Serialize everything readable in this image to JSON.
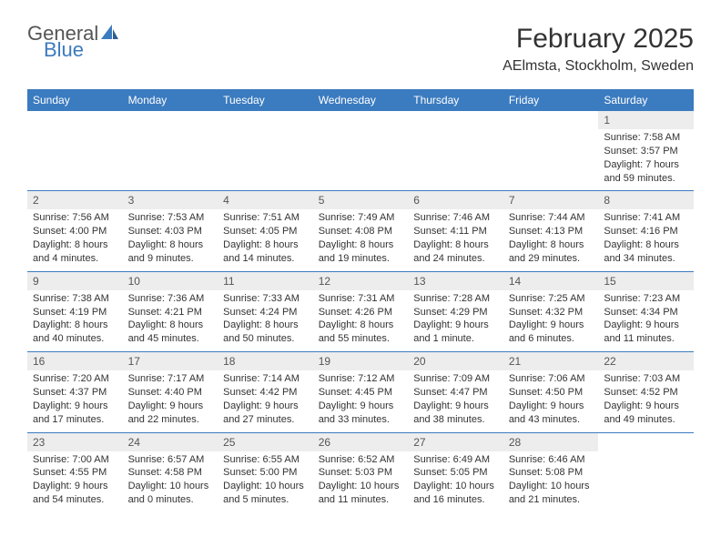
{
  "logo": {
    "word1": "General",
    "word2": "Blue",
    "text_color": "#555555",
    "accent_color": "#3b7bbf"
  },
  "title": "February 2025",
  "location": "AElmsta, Stockholm, Sweden",
  "colors": {
    "header_bg": "#3b7bbf",
    "header_text": "#ffffff",
    "daynum_bg": "#ededed",
    "row_border": "#3b7bbf",
    "body_text": "#333333"
  },
  "weekdays": [
    "Sunday",
    "Monday",
    "Tuesday",
    "Wednesday",
    "Thursday",
    "Friday",
    "Saturday"
  ],
  "weeks": [
    [
      null,
      null,
      null,
      null,
      null,
      null,
      {
        "n": "1",
        "sunrise": "Sunrise: 7:58 AM",
        "sunset": "Sunset: 3:57 PM",
        "dl1": "Daylight: 7 hours",
        "dl2": "and 59 minutes."
      }
    ],
    [
      {
        "n": "2",
        "sunrise": "Sunrise: 7:56 AM",
        "sunset": "Sunset: 4:00 PM",
        "dl1": "Daylight: 8 hours",
        "dl2": "and 4 minutes."
      },
      {
        "n": "3",
        "sunrise": "Sunrise: 7:53 AM",
        "sunset": "Sunset: 4:03 PM",
        "dl1": "Daylight: 8 hours",
        "dl2": "and 9 minutes."
      },
      {
        "n": "4",
        "sunrise": "Sunrise: 7:51 AM",
        "sunset": "Sunset: 4:05 PM",
        "dl1": "Daylight: 8 hours",
        "dl2": "and 14 minutes."
      },
      {
        "n": "5",
        "sunrise": "Sunrise: 7:49 AM",
        "sunset": "Sunset: 4:08 PM",
        "dl1": "Daylight: 8 hours",
        "dl2": "and 19 minutes."
      },
      {
        "n": "6",
        "sunrise": "Sunrise: 7:46 AM",
        "sunset": "Sunset: 4:11 PM",
        "dl1": "Daylight: 8 hours",
        "dl2": "and 24 minutes."
      },
      {
        "n": "7",
        "sunrise": "Sunrise: 7:44 AM",
        "sunset": "Sunset: 4:13 PM",
        "dl1": "Daylight: 8 hours",
        "dl2": "and 29 minutes."
      },
      {
        "n": "8",
        "sunrise": "Sunrise: 7:41 AM",
        "sunset": "Sunset: 4:16 PM",
        "dl1": "Daylight: 8 hours",
        "dl2": "and 34 minutes."
      }
    ],
    [
      {
        "n": "9",
        "sunrise": "Sunrise: 7:38 AM",
        "sunset": "Sunset: 4:19 PM",
        "dl1": "Daylight: 8 hours",
        "dl2": "and 40 minutes."
      },
      {
        "n": "10",
        "sunrise": "Sunrise: 7:36 AM",
        "sunset": "Sunset: 4:21 PM",
        "dl1": "Daylight: 8 hours",
        "dl2": "and 45 minutes."
      },
      {
        "n": "11",
        "sunrise": "Sunrise: 7:33 AM",
        "sunset": "Sunset: 4:24 PM",
        "dl1": "Daylight: 8 hours",
        "dl2": "and 50 minutes."
      },
      {
        "n": "12",
        "sunrise": "Sunrise: 7:31 AM",
        "sunset": "Sunset: 4:26 PM",
        "dl1": "Daylight: 8 hours",
        "dl2": "and 55 minutes."
      },
      {
        "n": "13",
        "sunrise": "Sunrise: 7:28 AM",
        "sunset": "Sunset: 4:29 PM",
        "dl1": "Daylight: 9 hours",
        "dl2": "and 1 minute."
      },
      {
        "n": "14",
        "sunrise": "Sunrise: 7:25 AM",
        "sunset": "Sunset: 4:32 PM",
        "dl1": "Daylight: 9 hours",
        "dl2": "and 6 minutes."
      },
      {
        "n": "15",
        "sunrise": "Sunrise: 7:23 AM",
        "sunset": "Sunset: 4:34 PM",
        "dl1": "Daylight: 9 hours",
        "dl2": "and 11 minutes."
      }
    ],
    [
      {
        "n": "16",
        "sunrise": "Sunrise: 7:20 AM",
        "sunset": "Sunset: 4:37 PM",
        "dl1": "Daylight: 9 hours",
        "dl2": "and 17 minutes."
      },
      {
        "n": "17",
        "sunrise": "Sunrise: 7:17 AM",
        "sunset": "Sunset: 4:40 PM",
        "dl1": "Daylight: 9 hours",
        "dl2": "and 22 minutes."
      },
      {
        "n": "18",
        "sunrise": "Sunrise: 7:14 AM",
        "sunset": "Sunset: 4:42 PM",
        "dl1": "Daylight: 9 hours",
        "dl2": "and 27 minutes."
      },
      {
        "n": "19",
        "sunrise": "Sunrise: 7:12 AM",
        "sunset": "Sunset: 4:45 PM",
        "dl1": "Daylight: 9 hours",
        "dl2": "and 33 minutes."
      },
      {
        "n": "20",
        "sunrise": "Sunrise: 7:09 AM",
        "sunset": "Sunset: 4:47 PM",
        "dl1": "Daylight: 9 hours",
        "dl2": "and 38 minutes."
      },
      {
        "n": "21",
        "sunrise": "Sunrise: 7:06 AM",
        "sunset": "Sunset: 4:50 PM",
        "dl1": "Daylight: 9 hours",
        "dl2": "and 43 minutes."
      },
      {
        "n": "22",
        "sunrise": "Sunrise: 7:03 AM",
        "sunset": "Sunset: 4:52 PM",
        "dl1": "Daylight: 9 hours",
        "dl2": "and 49 minutes."
      }
    ],
    [
      {
        "n": "23",
        "sunrise": "Sunrise: 7:00 AM",
        "sunset": "Sunset: 4:55 PM",
        "dl1": "Daylight: 9 hours",
        "dl2": "and 54 minutes."
      },
      {
        "n": "24",
        "sunrise": "Sunrise: 6:57 AM",
        "sunset": "Sunset: 4:58 PM",
        "dl1": "Daylight: 10 hours",
        "dl2": "and 0 minutes."
      },
      {
        "n": "25",
        "sunrise": "Sunrise: 6:55 AM",
        "sunset": "Sunset: 5:00 PM",
        "dl1": "Daylight: 10 hours",
        "dl2": "and 5 minutes."
      },
      {
        "n": "26",
        "sunrise": "Sunrise: 6:52 AM",
        "sunset": "Sunset: 5:03 PM",
        "dl1": "Daylight: 10 hours",
        "dl2": "and 11 minutes."
      },
      {
        "n": "27",
        "sunrise": "Sunrise: 6:49 AM",
        "sunset": "Sunset: 5:05 PM",
        "dl1": "Daylight: 10 hours",
        "dl2": "and 16 minutes."
      },
      {
        "n": "28",
        "sunrise": "Sunrise: 6:46 AM",
        "sunset": "Sunset: 5:08 PM",
        "dl1": "Daylight: 10 hours",
        "dl2": "and 21 minutes."
      },
      null
    ]
  ]
}
